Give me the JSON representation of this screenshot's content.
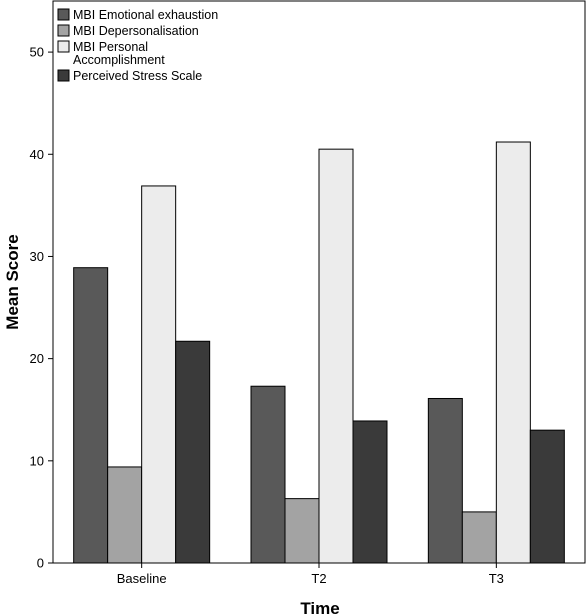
{
  "chart_data": {
    "type": "bar",
    "title": "",
    "xlabel": "Time",
    "ylabel": "Mean Score",
    "categories": [
      "Baseline",
      "T2",
      "T3"
    ],
    "ylim": [
      0,
      55
    ],
    "yticks": [
      0,
      10,
      20,
      30,
      40,
      50
    ],
    "grid": false,
    "legend_position": "top-left",
    "series": [
      {
        "name": "MBI Emotional exhaustion",
        "color": "#595959",
        "values": [
          28.9,
          17.3,
          16.1
        ]
      },
      {
        "name": "MBI Depersonalisation",
        "color": "#a3a3a3",
        "values": [
          9.4,
          6.3,
          5.0
        ]
      },
      {
        "name": "MBI Personal Accomplishment",
        "label_lines": [
          "MBI Personal",
          "Accomplishment"
        ],
        "color": "#ececec",
        "values": [
          36.9,
          40.5,
          41.2
        ]
      },
      {
        "name": "Perceived Stress Scale",
        "color": "#3a3a3a",
        "values": [
          21.7,
          13.9,
          13.0
        ]
      }
    ]
  }
}
